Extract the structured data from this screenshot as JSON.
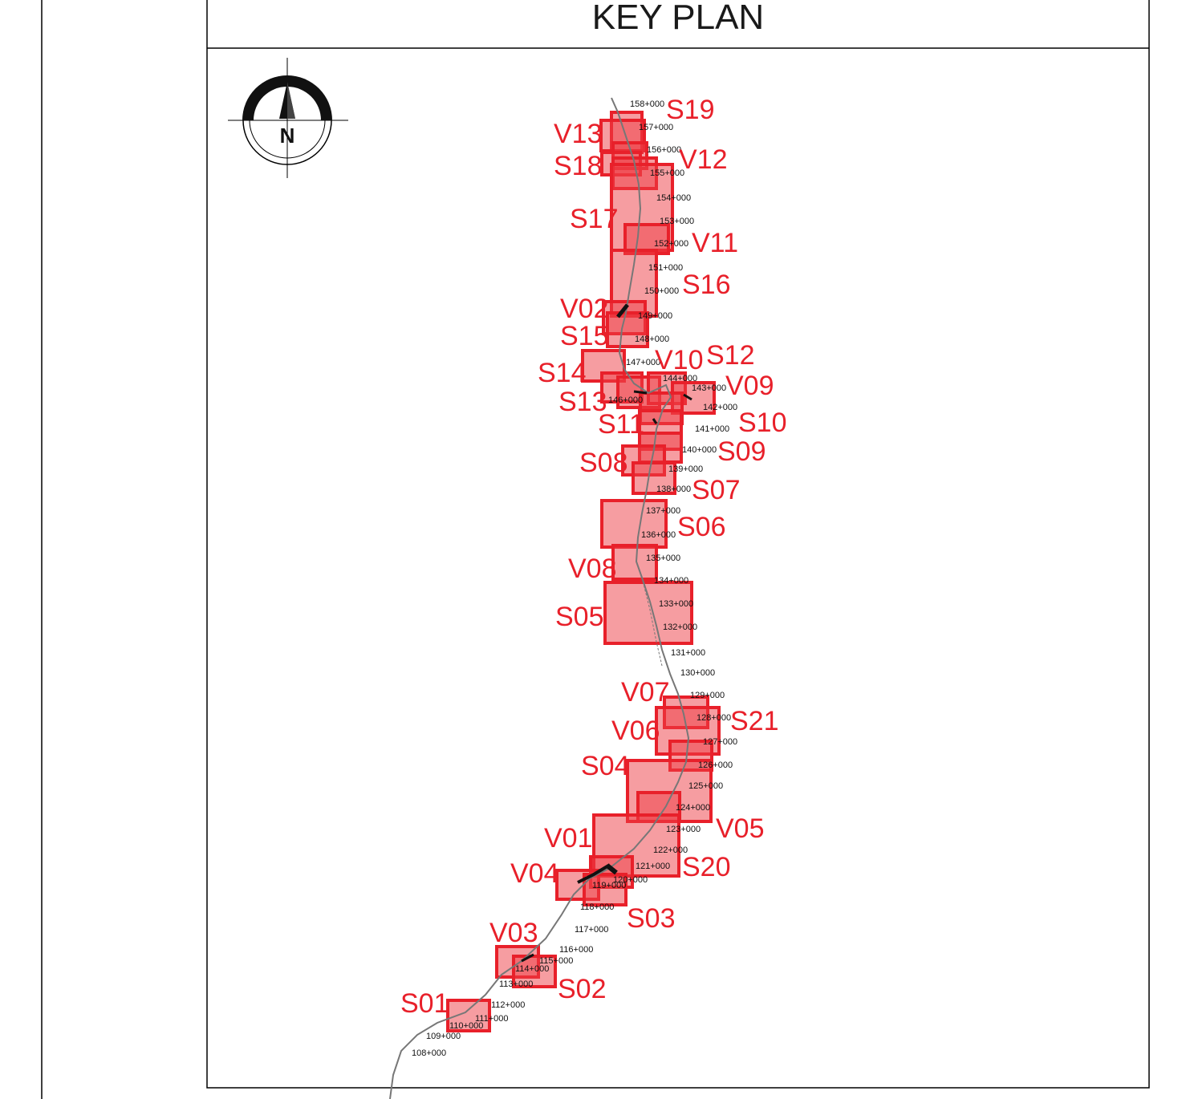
{
  "title": "KEY PLAN",
  "north_arrow": {
    "icon": "north-arrow-icon",
    "letter": "N"
  },
  "colors": {
    "frame": "#000000",
    "highlight_fill": "#ee3b44",
    "highlight_stroke": "#e8202a",
    "label": "#e8202a",
    "alignment": "#777777"
  },
  "chainages": [
    "158+000",
    "157+000",
    "156+000",
    "155+000",
    "154+000",
    "153+000",
    "152+000",
    "151+000",
    "150+000",
    "149+000",
    "148+000",
    "147+000",
    "144+000",
    "143+000",
    "146+000",
    "142+000",
    "141+000",
    "140+000",
    "139+000",
    "138+000",
    "137+000",
    "136+000",
    "135+000",
    "134+000",
    "133+000",
    "132+000",
    "131+000",
    "130+000",
    "129+000",
    "128+000",
    "127+000",
    "126+000",
    "125+000",
    "124+000",
    "123+000",
    "122+000",
    "121+000",
    "120+000",
    "119+000",
    "118+000",
    "117+000",
    "116+000",
    "115+000",
    "114+000",
    "113+000",
    "112+000",
    "111+000",
    "110+000",
    "109+000",
    "108+000"
  ],
  "sheet_labels": [
    "S19",
    "V13",
    "V12",
    "S18",
    "S17",
    "V11",
    "S16",
    "V02",
    "S15",
    "S12",
    "V10",
    "S14",
    "V09",
    "S13",
    "S11",
    "S10",
    "S09",
    "S08",
    "S07",
    "S06",
    "V08",
    "S05",
    "V07",
    "S21",
    "V06",
    "S04",
    "V05",
    "V01",
    "S20",
    "V04",
    "S03",
    "V03",
    "S02",
    "S01"
  ]
}
